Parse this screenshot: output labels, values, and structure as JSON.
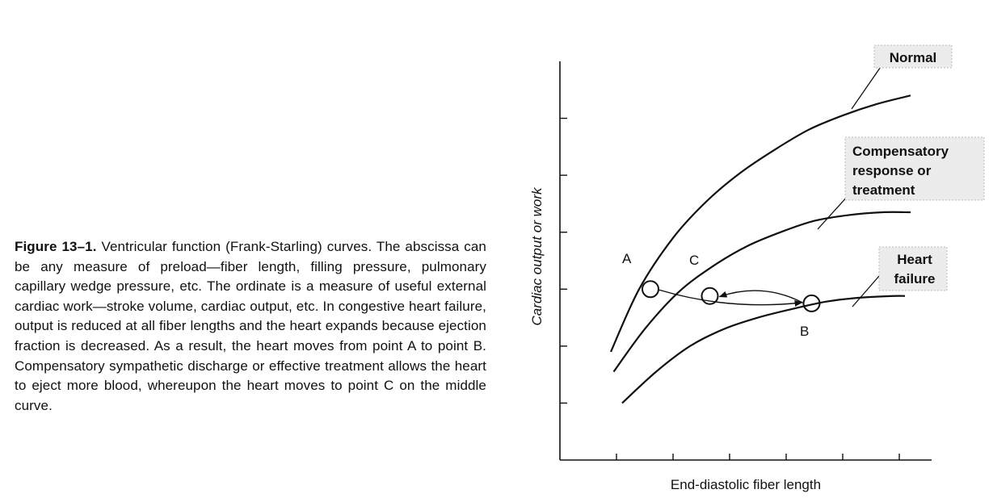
{
  "caption": {
    "label": "Figure 13–1.",
    "text": " Ventricular function (Frank-Starling) curves. The abscissa can be any measure of preload—fiber length, filling pressure, pulmonary capillary wedge pressure, etc. The ordinate is a measure of useful external cardiac work—stroke volume, cardiac output, etc. In congestive heart failure, output is reduced at all fiber lengths and the heart expands because ejection fraction is decreased. As a result, the heart moves from point A to point B. Compensatory sympathetic discharge or effective treatment allows the heart to eject more blood, whereupon the heart moves to point C on the middle curve."
  },
  "chart_data": {
    "type": "line",
    "xlabel": "End-diastolic fiber length",
    "ylabel": "Cardiac output or work",
    "xlim": [
      0,
      7
    ],
    "ylim": [
      0,
      7
    ],
    "grid": false,
    "series": [
      {
        "name": "Normal",
        "x": [
          0.9,
          1.4,
          2.0,
          2.6,
          3.2,
          3.8,
          4.4,
          5.0,
          5.6,
          6.2
        ],
        "y": [
          1.9,
          3.0,
          3.9,
          4.55,
          5.05,
          5.45,
          5.8,
          6.05,
          6.25,
          6.4
        ]
      },
      {
        "name": "Compensatory response or treatment",
        "x": [
          0.95,
          1.5,
          2.1,
          2.7,
          3.3,
          3.9,
          4.5,
          5.1,
          5.7,
          6.2
        ],
        "y": [
          1.55,
          2.3,
          2.95,
          3.4,
          3.75,
          4.0,
          4.2,
          4.3,
          4.35,
          4.35
        ]
      },
      {
        "name": "Heart failure",
        "x": [
          1.1,
          1.7,
          2.3,
          2.9,
          3.5,
          4.1,
          4.7,
          5.3,
          5.9,
          6.1
        ],
        "y": [
          1.0,
          1.55,
          2.0,
          2.3,
          2.5,
          2.65,
          2.78,
          2.85,
          2.88,
          2.88
        ]
      }
    ],
    "points": [
      {
        "label": "A",
        "x": 1.6,
        "y": 3.0
      },
      {
        "label": "B",
        "x": 4.45,
        "y": 2.75
      },
      {
        "label": "C",
        "x": 2.65,
        "y": 2.88
      }
    ],
    "transitions": [
      {
        "from": "A",
        "to": "B"
      },
      {
        "from": "B",
        "to": "C"
      }
    ],
    "series_labels": {
      "normal": "Normal",
      "compensatory": [
        "Compensatory",
        "response or",
        "treatment"
      ],
      "heart_failure": [
        "Heart",
        "failure"
      ]
    }
  }
}
